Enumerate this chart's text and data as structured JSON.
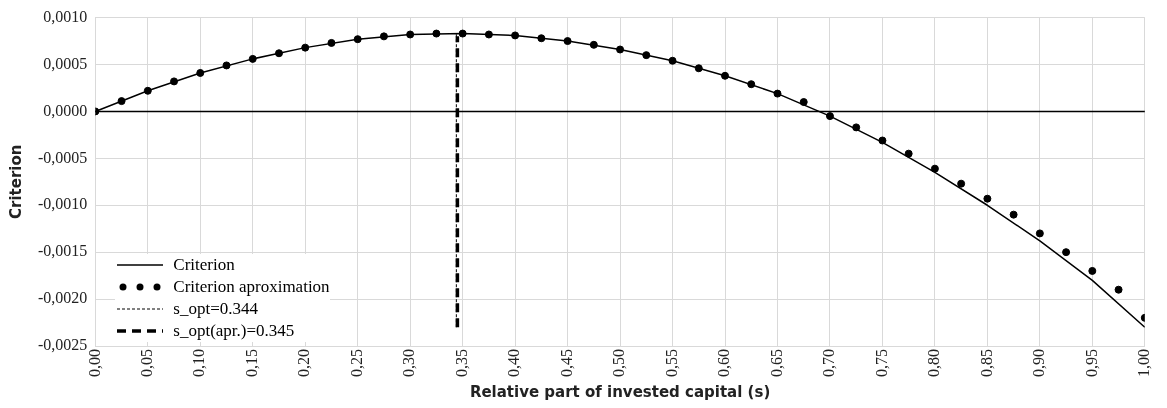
{
  "chart_data": {
    "type": "line",
    "xlabel": "Relative part of invested capital (s)",
    "ylabel": "Criterion",
    "xlim": [
      0,
      1
    ],
    "xticks": [
      {
        "value": 0,
        "label": "0,00"
      },
      {
        "value": 0.05,
        "label": "0,05"
      },
      {
        "value": 0.1,
        "label": "0,10"
      },
      {
        "value": 0.15,
        "label": "0,15"
      },
      {
        "value": 0.2,
        "label": "0,20"
      },
      {
        "value": 0.25,
        "label": "0,25"
      },
      {
        "value": 0.3,
        "label": "0,30"
      },
      {
        "value": 0.35,
        "label": "0,35"
      },
      {
        "value": 0.4,
        "label": "0,40"
      },
      {
        "value": 0.45,
        "label": "0,45"
      },
      {
        "value": 0.5,
        "label": "0,50"
      },
      {
        "value": 0.55,
        "label": "0,55"
      },
      {
        "value": 0.6,
        "label": "0,60"
      },
      {
        "value": 0.65,
        "label": "0,65"
      },
      {
        "value": 0.7,
        "label": "0,70"
      },
      {
        "value": 0.75,
        "label": "0,75"
      },
      {
        "value": 0.8,
        "label": "0,80"
      },
      {
        "value": 0.85,
        "label": "0,85"
      },
      {
        "value": 0.9,
        "label": "0,90"
      },
      {
        "value": 0.95,
        "label": "0,95"
      },
      {
        "value": 1,
        "label": "1,00"
      }
    ],
    "ylim": [
      -0.0025,
      0.001
    ],
    "yticks": [
      {
        "value": -0.0025,
        "label": "-0,0025"
      },
      {
        "value": -0.002,
        "label": "-0,0020"
      },
      {
        "value": -0.0015,
        "label": "-0,0015"
      },
      {
        "value": -0.001,
        "label": "-0,0010"
      },
      {
        "value": -0.0005,
        "label": "-0,0005"
      },
      {
        "value": 0,
        "label": "0,0000"
      },
      {
        "value": 0.0005,
        "label": "0,0005"
      },
      {
        "value": 0.001,
        "label": "0,0010"
      }
    ],
    "grid": true,
    "legend": "bottom left",
    "ref_lines": [
      {
        "axis": "y",
        "value": 0,
        "color": "#000000"
      }
    ],
    "series": [
      {
        "name": "Criterion",
        "color": "#000000",
        "line_style": "solid",
        "marker": "none",
        "x": [
          0,
          0.05,
          0.1,
          0.15,
          0.2,
          0.25,
          0.3,
          0.35,
          0.4,
          0.45,
          0.5,
          0.55,
          0.6,
          0.65,
          0.7,
          0.75,
          0.8,
          0.85,
          0.9,
          0.95,
          1
        ],
        "values": [
          0,
          0.00022,
          0.00041,
          0.00056,
          0.00068,
          0.00077,
          0.00082,
          0.00083,
          0.00081,
          0.00075,
          0.00066,
          0.00054,
          0.00038,
          0.00019,
          -5e-05,
          -0.00033,
          -0.00065,
          -0.001,
          -0.00138,
          -0.0018,
          -0.0023
        ]
      },
      {
        "name": "Criterion aproximation",
        "type": "scatter",
        "color": "#000000",
        "marker": "circle",
        "x": [
          0,
          0.025,
          0.05,
          0.075,
          0.1,
          0.125,
          0.15,
          0.175,
          0.2,
          0.225,
          0.25,
          0.275,
          0.3,
          0.325,
          0.35,
          0.375,
          0.4,
          0.425,
          0.45,
          0.475,
          0.5,
          0.525,
          0.55,
          0.575,
          0.6,
          0.625,
          0.65,
          0.675,
          0.7,
          0.725,
          0.75,
          0.775,
          0.8,
          0.825,
          0.85,
          0.875,
          0.9,
          0.925,
          0.95,
          0.975,
          1
        ],
        "values": [
          0,
          0.00011,
          0.00022,
          0.00032,
          0.00041,
          0.00049,
          0.00056,
          0.00062,
          0.00068,
          0.00073,
          0.00077,
          0.0008,
          0.00082,
          0.00083,
          0.00083,
          0.00082,
          0.00081,
          0.00078,
          0.00075,
          0.00071,
          0.00066,
          0.0006,
          0.00054,
          0.00046,
          0.00038,
          0.00029,
          0.00019,
          0.0001,
          -5e-05,
          -0.00017,
          -0.00031,
          -0.00045,
          -0.00061,
          -0.00077,
          -0.00093,
          -0.0011,
          -0.0013,
          -0.0015,
          -0.0017,
          -0.0019,
          -0.0022
        ]
      },
      {
        "name": "s_opt=0.344",
        "color": "#000000",
        "line_style": "dotted",
        "marker": "none",
        "x": [
          0.344,
          0.344
        ],
        "values": [
          -0.0023,
          0.00083
        ]
      },
      {
        "name": "s_opt(apr.)=0.345",
        "color": "#000000",
        "line_style": "dashed",
        "marker": "none",
        "x": [
          0.345,
          0.345
        ],
        "values": [
          -0.0023,
          0.0008
        ]
      }
    ]
  }
}
